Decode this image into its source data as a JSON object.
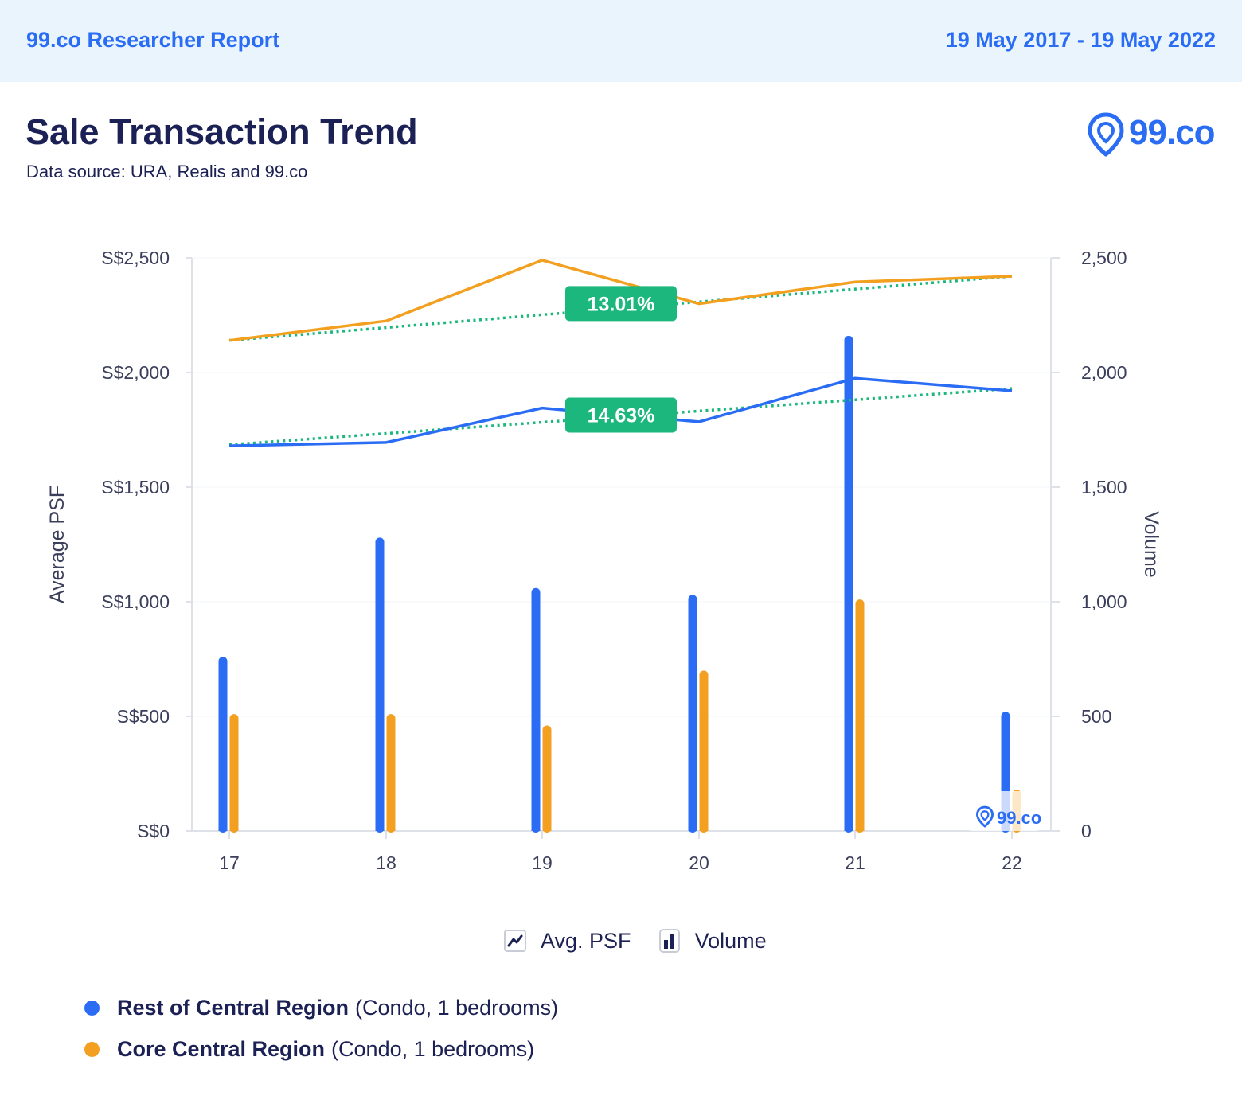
{
  "header": {
    "brand": "99.co Researcher Report",
    "date_range": "19 May 2017 - 19 May 2022"
  },
  "title": "Sale Transaction Trend",
  "subtitle": "Data source: URA, Realis and 99.co",
  "logo_text": "99.co",
  "watermark_text": "99.co",
  "colors": {
    "rest_central": "#2a6df4",
    "core_central": "#f3a020",
    "trend": "#1bb77d",
    "badge": "#1bb77d"
  },
  "legend": {
    "avg_psf": "Avg. PSF",
    "volume": "Volume"
  },
  "series_legend": [
    {
      "name": "Rest of Central Region",
      "detail": "(Condo, 1 bedrooms)",
      "color": "#2a6df4"
    },
    {
      "name": "Core Central Region",
      "detail": "(Condo, 1 bedrooms)",
      "color": "#f3a020"
    }
  ],
  "chart_data": {
    "type": "bar+line",
    "categories": [
      "17",
      "18",
      "19",
      "20",
      "21",
      "22"
    ],
    "left_axis": {
      "label": "Average PSF",
      "range": [
        0,
        2500
      ],
      "ticks": [
        "S$0",
        "S$500",
        "S$1,000",
        "S$1,500",
        "S$2,000",
        "S$2,500"
      ]
    },
    "right_axis": {
      "label": "Volume",
      "range": [
        0,
        2500
      ],
      "ticks": [
        "0",
        "500",
        "1,000",
        "1,500",
        "2,000",
        "2,500"
      ]
    },
    "volume_series": [
      {
        "name": "Rest of Central Region",
        "values": [
          760,
          1280,
          1060,
          1030,
          2160,
          520
        ]
      },
      {
        "name": "Core Central Region",
        "values": [
          510,
          510,
          460,
          700,
          1010,
          180
        ]
      }
    ],
    "psf_series": [
      {
        "name": "Rest of Central Region",
        "values": [
          1680,
          1695,
          1845,
          1785,
          1975,
          1920
        ]
      },
      {
        "name": "Core Central Region",
        "values": [
          2140,
          2225,
          2490,
          2300,
          2395,
          2420
        ]
      }
    ],
    "trendlines": [
      {
        "series": "Core Central Region",
        "start": 2140,
        "end": 2420,
        "label": "13.01%"
      },
      {
        "series": "Rest of Central Region",
        "start": 1685,
        "end": 1930,
        "label": "14.63%"
      }
    ],
    "grid": false
  }
}
